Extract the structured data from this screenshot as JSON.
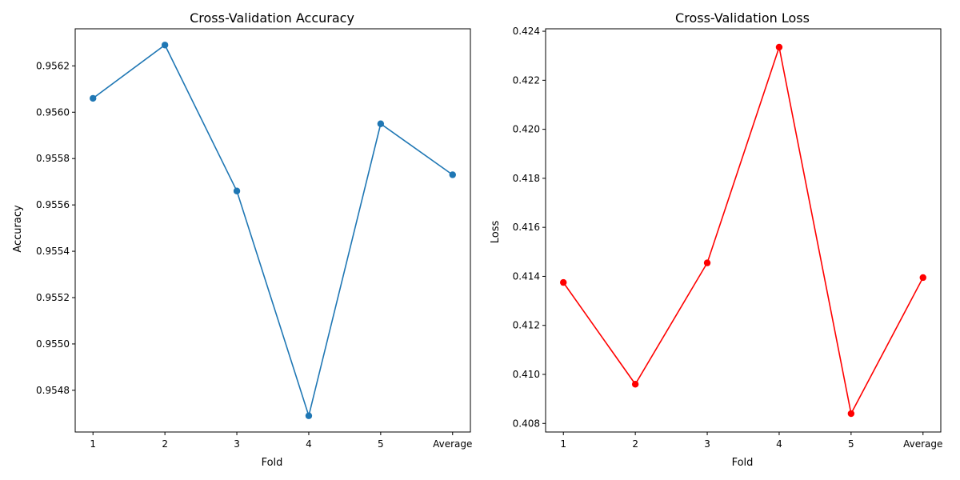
{
  "chart_data": [
    {
      "type": "line",
      "title": "Cross-Validation Accuracy",
      "xlabel": "Fold",
      "ylabel": "Accuracy",
      "categories": [
        "1",
        "2",
        "3",
        "4",
        "5",
        "Average"
      ],
      "series": [
        {
          "values": [
            0.95606,
            0.95629,
            0.95566,
            0.95469,
            0.95595,
            0.95573
          ],
          "color": "#1f77b4"
        }
      ],
      "ylim": [
        0.95462,
        0.95636
      ],
      "yticks": [
        0.9548,
        0.955,
        0.9552,
        0.9554,
        0.9556,
        0.9558,
        0.956,
        0.9562
      ],
      "ytick_labels": [
        "0.9548",
        "0.9550",
        "0.9552",
        "0.9554",
        "0.9556",
        "0.9558",
        "0.9560",
        "0.9562"
      ],
      "marker": "circle",
      "grid": false,
      "legend": "none"
    },
    {
      "type": "line",
      "title": "Cross-Validation Loss",
      "xlabel": "Fold",
      "ylabel": "Loss",
      "categories": [
        "1",
        "2",
        "3",
        "4",
        "5",
        "Average"
      ],
      "series": [
        {
          "values": [
            0.41375,
            0.4096,
            0.41455,
            0.42335,
            0.4084,
            0.41395
          ],
          "color": "#ff0000"
        }
      ],
      "ylim": [
        0.40765,
        0.4241
      ],
      "yticks": [
        0.408,
        0.41,
        0.412,
        0.414,
        0.416,
        0.418,
        0.42,
        0.422,
        0.424
      ],
      "ytick_labels": [
        "0.408",
        "0.410",
        "0.412",
        "0.414",
        "0.416",
        "0.418",
        "0.420",
        "0.422",
        "0.424"
      ],
      "marker": "circle",
      "grid": false,
      "legend": "none"
    }
  ]
}
